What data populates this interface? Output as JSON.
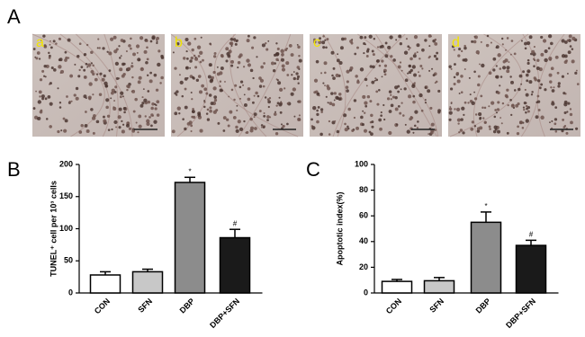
{
  "panel_labels": [
    "A",
    "B",
    "C"
  ],
  "image_labels": [
    "a",
    "b",
    "c",
    "d"
  ],
  "chart_data": [
    {
      "type": "bar",
      "y_label": "TUNEL⁺ cell per 10³ cells",
      "categories": [
        "CON",
        "SFN",
        "DBP",
        "DBP+SFN"
      ],
      "values": [
        28,
        33,
        172,
        86
      ],
      "errors": [
        5,
        4,
        8,
        13
      ],
      "markers": [
        null,
        null,
        "*",
        "#"
      ],
      "colors": [
        "#ffffff",
        "#c8c8c8",
        "#8c8c8c",
        "#1a1a1a"
      ],
      "ylim": [
        0,
        200
      ],
      "yticks": [
        0,
        50,
        100,
        150,
        200
      ]
    },
    {
      "type": "bar",
      "y_label": "Apoptotic index(%)",
      "categories": [
        "CON",
        "SFN",
        "DBP",
        "DBP+SFN"
      ],
      "values": [
        9,
        9.5,
        55,
        37
      ],
      "errors": [
        1.5,
        2.5,
        8,
        4
      ],
      "markers": [
        null,
        null,
        "*",
        "#"
      ],
      "colors": [
        "#ffffff",
        "#c8c8c8",
        "#8c8c8c",
        "#1a1a1a"
      ],
      "ylim": [
        0,
        100
      ],
      "yticks": [
        0,
        20,
        40,
        60,
        80,
        100
      ]
    }
  ]
}
